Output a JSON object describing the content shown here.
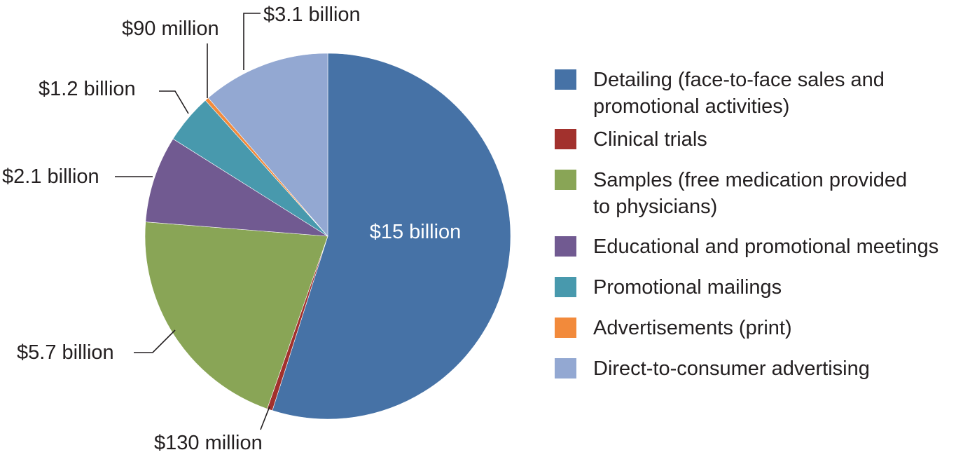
{
  "chart_data": {
    "type": "pie",
    "title": "",
    "slices": [
      {
        "label": "Detailing (face-to-face sales and\npromotional activities)",
        "value": 15000,
        "display": "$15 billion",
        "color": "#4672a6"
      },
      {
        "label": "Clinical trials",
        "value": 130,
        "display": "$130 million",
        "color": "#a2312d"
      },
      {
        "label": "Samples (free medication provided\nto physicians)",
        "value": 5700,
        "display": "$5.7 billion",
        "color": "#89a556"
      },
      {
        "label": "Educational and promotional meetings",
        "value": 2100,
        "display": "$2.1 billion",
        "color": "#715a91"
      },
      {
        "label": "Promotional mailings",
        "value": 1200,
        "display": "$1.2 billion",
        "color": "#4899ad"
      },
      {
        "label": "Advertisements (print)",
        "value": 90,
        "display": "$90 million",
        "color": "#f28a3b"
      },
      {
        "label": "Direct-to-consumer advertising",
        "value": 3100,
        "display": "$3.1 billion",
        "color": "#93a8d2"
      }
    ],
    "legend_position": "right",
    "start_angle_deg": 0,
    "direction": "clockwise"
  }
}
